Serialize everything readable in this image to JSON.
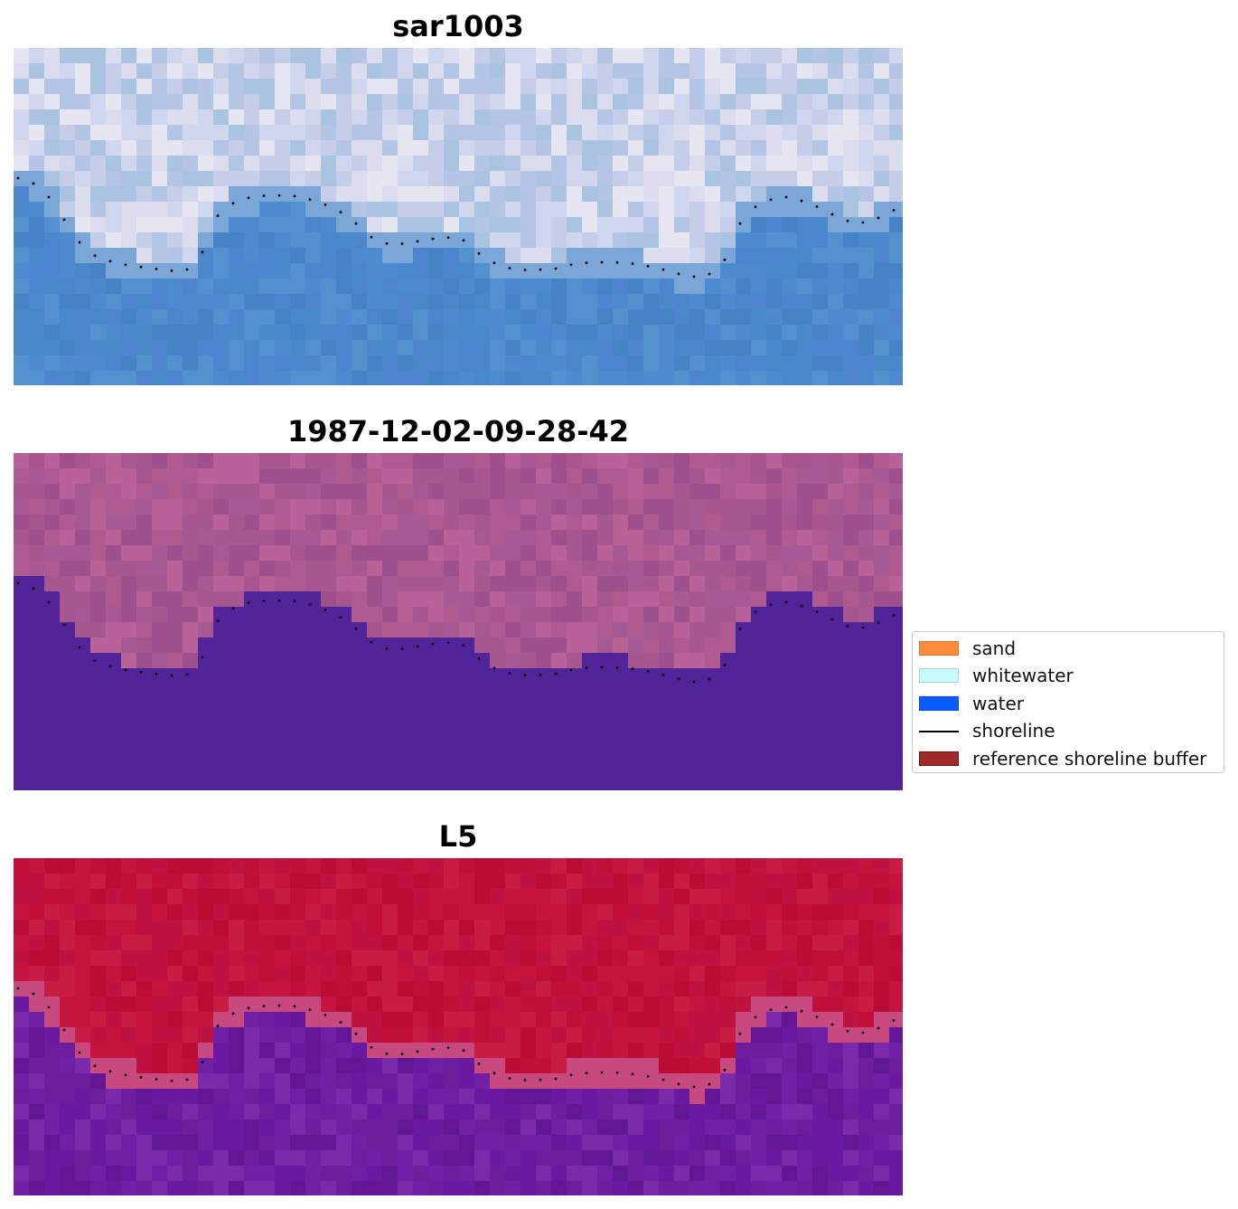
{
  "panels": [
    {
      "title": "sar1003",
      "style": "sar"
    },
    {
      "title": "1987-12-02-09-28-42",
      "style": "class"
    },
    {
      "title": "L5",
      "style": "ndwi"
    }
  ],
  "legend": {
    "items": [
      {
        "label": "sand",
        "color": "#ff8c3b",
        "kind": "patch"
      },
      {
        "label": "whitewater",
        "color": "#c8fbfb",
        "kind": "patch"
      },
      {
        "label": "water",
        "color": "#0a5cff",
        "kind": "patch"
      },
      {
        "label": "shoreline",
        "color": "#000000",
        "kind": "line"
      },
      {
        "label": "reference shoreline buffer",
        "color": "#9e2a2a",
        "kind": "patch"
      }
    ]
  },
  "colors": {
    "sar_land": [
      "#dcdcef",
      "#c5cde8",
      "#b3c4e4",
      "#a9c3e0",
      "#cfd6ee",
      "#e6e6f3"
    ],
    "sar_water": [
      "#4a88cc",
      "#4e8ad0",
      "#4582c6",
      "#5290d0",
      "#4d85cf"
    ],
    "class_land": [
      "#a8568f",
      "#b05a92",
      "#9e4f8c",
      "#b9629a",
      "#a85892"
    ],
    "class_water": "#52249a",
    "ndwi_land": [
      "#c0103a",
      "#c5153e",
      "#ba0c34",
      "#c81c44",
      "#bf1240"
    ],
    "ndwi_edge": "#c84880",
    "ndwi_water": [
      "#6a1aa0",
      "#7120a6",
      "#631796",
      "#7a2aaa",
      "#6e1d9f"
    ]
  }
}
